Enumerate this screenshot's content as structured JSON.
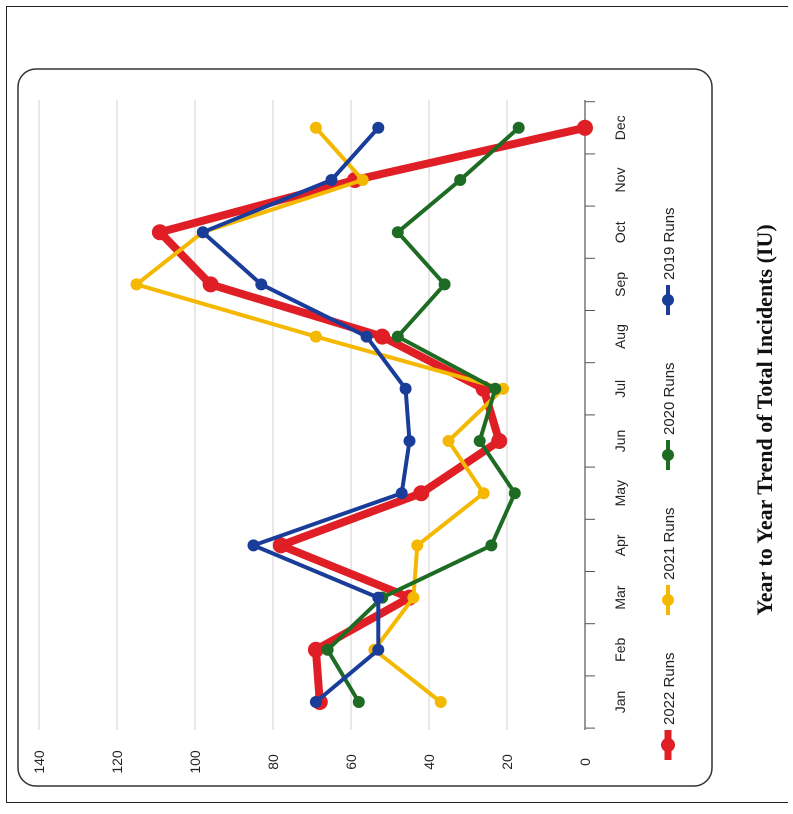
{
  "chart_data": {
    "type": "line",
    "title": "Year to Year Trend of Total Incidents (IU)",
    "categories": [
      "Jan",
      "Feb",
      "Mar",
      "Apr",
      "May",
      "Jun",
      "Jul",
      "Aug",
      "Sep",
      "Oct",
      "Nov",
      "Dec"
    ],
    "y_ticks": [
      0,
      20,
      40,
      60,
      80,
      100,
      120,
      140
    ],
    "ylim": [
      0,
      140
    ],
    "grid": true,
    "legend_position": "bottom",
    "orientation": "rotated-90-clockwise",
    "series": [
      {
        "name": "2022 Runs",
        "color": "#e01e26",
        "values": [
          68,
          69,
          45,
          78,
          42,
          22,
          26,
          52,
          96,
          109,
          59,
          0
        ]
      },
      {
        "name": "2021 Runs",
        "color": "#f5b800",
        "values": [
          37,
          54,
          44,
          43,
          26,
          35,
          21,
          69,
          115,
          98,
          57,
          69
        ]
      },
      {
        "name": "2020 Runs",
        "color": "#1e6b23",
        "values": [
          58,
          66,
          52,
          24,
          18,
          27,
          23,
          48,
          36,
          48,
          32,
          17
        ]
      },
      {
        "name": "2019 Runs",
        "color": "#1a3d9a",
        "values": [
          69,
          53,
          53,
          85,
          47,
          45,
          46,
          56,
          83,
          98,
          65,
          53
        ]
      }
    ]
  }
}
